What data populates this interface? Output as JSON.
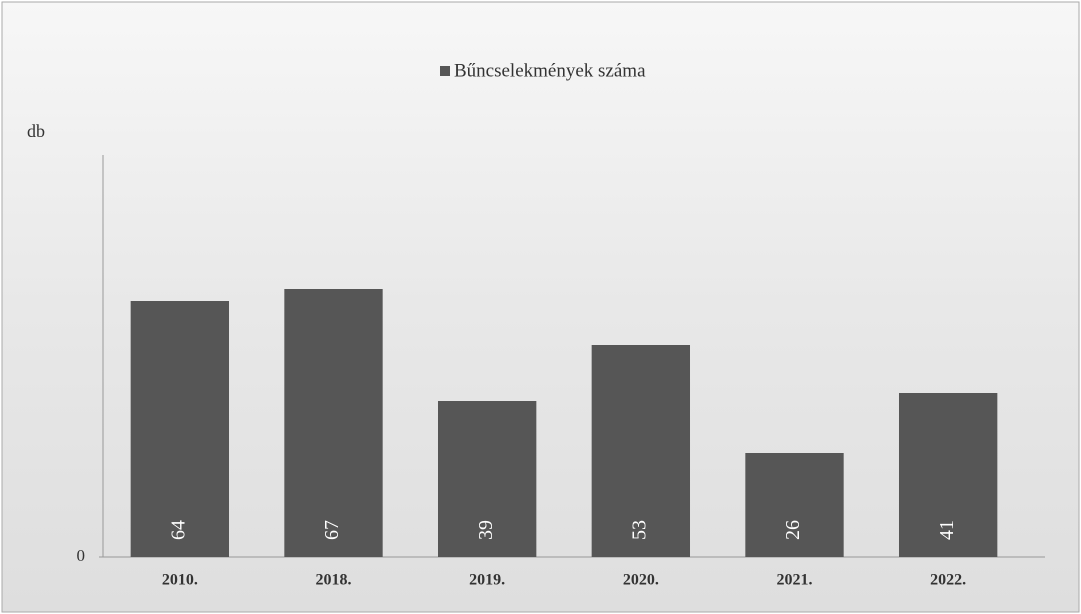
{
  "chart_data": {
    "type": "bar",
    "y_label": "db",
    "legend": "Bűncselekmények száma",
    "categories": [
      "2010.",
      "2018.",
      "2019.",
      "2020.",
      "2021.",
      "2022."
    ],
    "values": [
      64,
      67,
      39,
      53,
      26,
      41
    ],
    "color": "#565656",
    "ylim": [
      0,
      100
    ],
    "yticks": [
      0
    ],
    "grid": false
  }
}
